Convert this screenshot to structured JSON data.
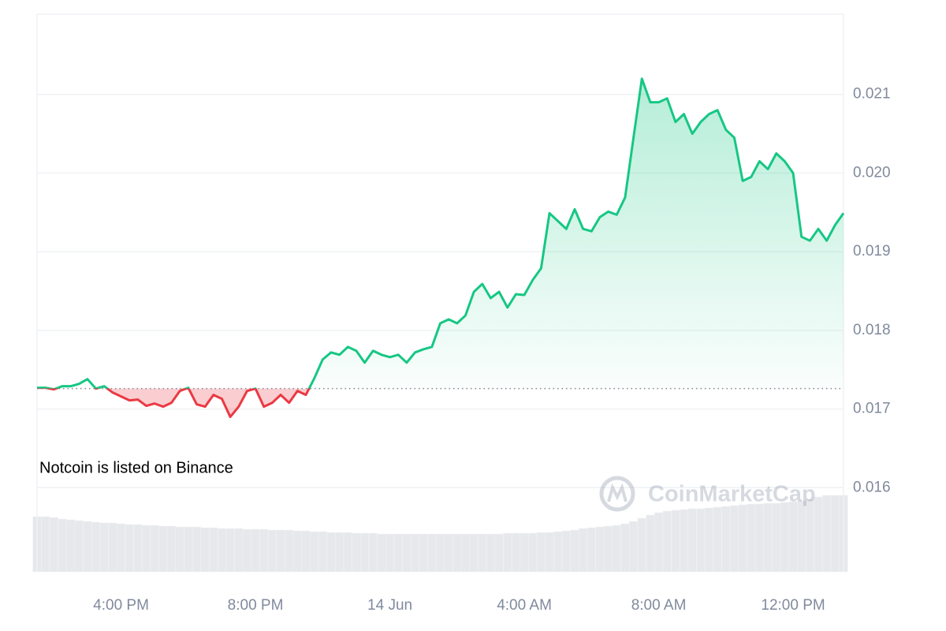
{
  "chart_data": {
    "type": "line",
    "annotation": "Notcoin is listed on Binance",
    "watermark": "CoinMarketCap",
    "categories": [
      null,
      null,
      null,
      null,
      null,
      null,
      null,
      null,
      null,
      null,
      "4:00 PM",
      null,
      null,
      null,
      null,
      null,
      null,
      null,
      null,
      null,
      null,
      null,
      null,
      null,
      null,
      null,
      "8:00 PM",
      null,
      null,
      null,
      null,
      null,
      null,
      null,
      null,
      null,
      null,
      null,
      null,
      null,
      null,
      null,
      "14 Jun",
      null,
      null,
      null,
      null,
      null,
      null,
      null,
      null,
      null,
      null,
      null,
      null,
      null,
      null,
      null,
      "4:00 AM",
      null,
      null,
      null,
      null,
      null,
      null,
      null,
      null,
      null,
      null,
      null,
      null,
      null,
      null,
      null,
      "8:00 AM",
      null,
      null,
      null,
      null,
      null,
      null,
      null,
      null,
      null,
      null,
      null,
      null,
      null,
      null,
      null,
      "12:00 PM",
      null,
      null,
      null,
      null,
      null,
      null
    ],
    "series": [
      {
        "up_color": "#16c784",
        "down_color": "#ea3943",
        "values": [
          0.01727,
          0.01727,
          0.01725,
          0.01729,
          0.01729,
          0.01732,
          0.01738,
          0.01726,
          0.01729,
          0.01721,
          0.01716,
          0.01711,
          0.01712,
          0.01704,
          0.01707,
          0.01703,
          0.01708,
          0.01723,
          0.01727,
          0.01706,
          0.01703,
          0.01718,
          0.01713,
          0.0169,
          0.01703,
          0.01723,
          0.01726,
          0.01703,
          0.01708,
          0.01718,
          0.01708,
          0.01723,
          0.01718,
          0.01739,
          0.01763,
          0.01772,
          0.01769,
          0.01779,
          0.01774,
          0.01759,
          0.01774,
          0.01769,
          0.01766,
          0.01769,
          0.01759,
          0.01772,
          0.01776,
          0.01779,
          0.01809,
          0.01814,
          0.01809,
          0.01819,
          0.01849,
          0.01859,
          0.01841,
          0.01849,
          0.01829,
          0.01846,
          0.01845,
          0.01864,
          0.01879,
          0.01949,
          0.01939,
          0.01929,
          0.01954,
          0.01929,
          0.01926,
          0.01944,
          0.01951,
          0.01947,
          0.01969,
          0.02045,
          0.0212,
          0.0209,
          0.0209,
          0.02095,
          0.02065,
          0.02075,
          0.0205,
          0.02065,
          0.02075,
          0.0208,
          0.02055,
          0.02045,
          0.0199,
          0.01995,
          0.02015,
          0.02005,
          0.02025,
          0.02015,
          0.02,
          0.01919,
          0.01914,
          0.01929,
          0.01914,
          0.01934,
          0.01949
        ]
      }
    ],
    "baseline": 0.01726,
    "volume": [
      70,
      70,
      69,
      67,
      66,
      65,
      64,
      63,
      62,
      62,
      61,
      60,
      60,
      59,
      59,
      58,
      58,
      57,
      57,
      57,
      56,
      56,
      55,
      55,
      55,
      54,
      54,
      54,
      53,
      53,
      53,
      52,
      52,
      51,
      51,
      50,
      50,
      50,
      49,
      49,
      49,
      48,
      48,
      48,
      48,
      48,
      48,
      48,
      48,
      48,
      48,
      48,
      48,
      48,
      48,
      48,
      49,
      49,
      49,
      49,
      50,
      50,
      51,
      52,
      53,
      55,
      56,
      57,
      58,
      59,
      61,
      64,
      68,
      72,
      75,
      77,
      78,
      79,
      80,
      80,
      81,
      82,
      83,
      84,
      85,
      86,
      86,
      87,
      87,
      88,
      89,
      90,
      92,
      95,
      97,
      97,
      97
    ],
    "volume_lim": [
      0,
      100
    ],
    "volume_color": "#e6e8ec",
    "ylim": [
      0.01493,
      0.02202
    ],
    "yticks": [
      0.016,
      0.017,
      0.018,
      0.019,
      {
        "value": 0.02,
        "label": "0.020"
      },
      0.021
    ],
    "grid": true
  }
}
